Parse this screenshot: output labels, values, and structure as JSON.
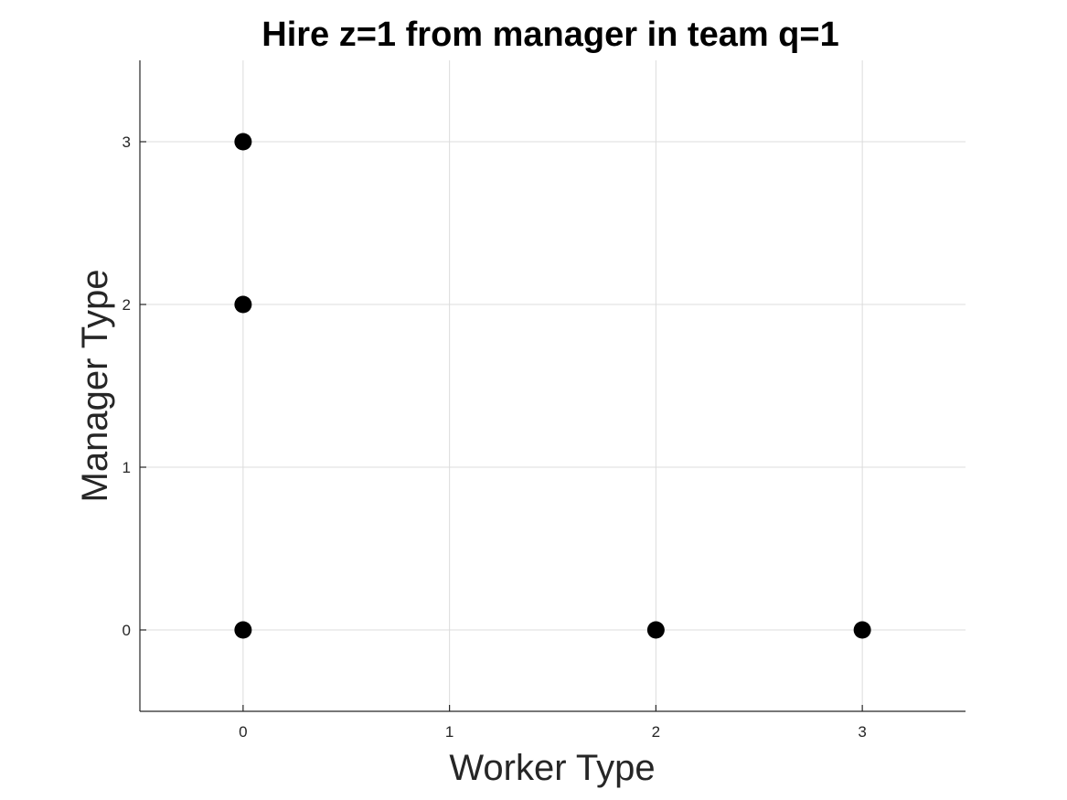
{
  "chart_data": {
    "type": "scatter",
    "title": "Hire z=1 from manager in team q=1",
    "xlabel": "Worker Type",
    "ylabel": "Manager Type",
    "xlim": [
      -0.5,
      3.5
    ],
    "ylim": [
      -0.5,
      3.5
    ],
    "xticks": [
      0,
      1,
      2,
      3
    ],
    "yticks": [
      0,
      1,
      2,
      3
    ],
    "grid": true,
    "marker_color": "#000000",
    "points": [
      {
        "x": 0,
        "y": 3
      },
      {
        "x": 0,
        "y": 2
      },
      {
        "x": 0,
        "y": 0
      },
      {
        "x": 2,
        "y": 0
      },
      {
        "x": 3,
        "y": 0
      }
    ]
  }
}
